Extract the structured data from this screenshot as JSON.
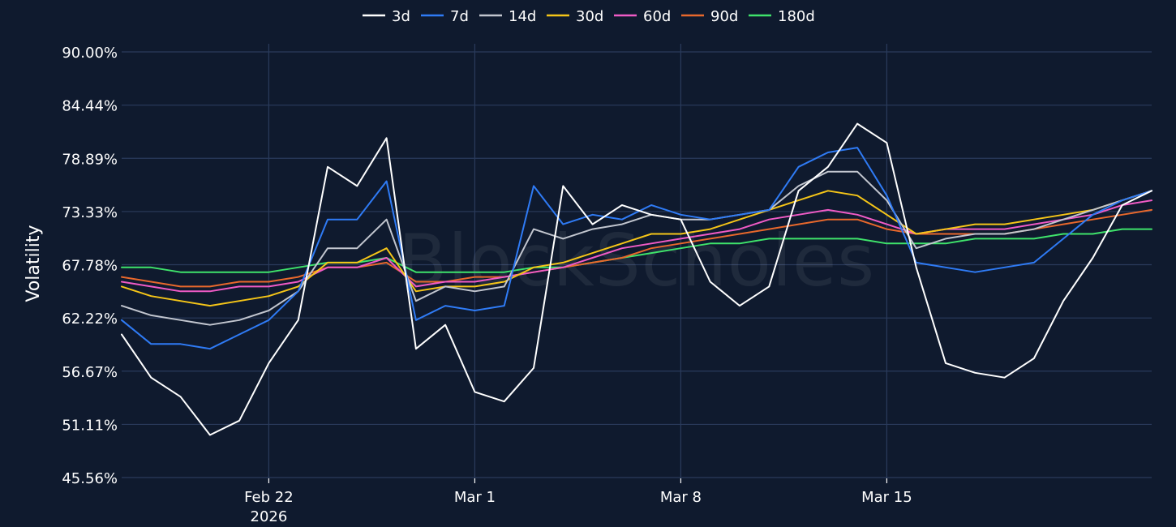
{
  "chart_data": {
    "type": "line",
    "title": "",
    "xlabel": "",
    "ylabel": "Volatility",
    "watermark": "BlockScholes",
    "x_range": [
      "2026-02-17",
      "2026-03-24"
    ],
    "ylim": [
      45.56,
      90.0
    ],
    "y_ticks": [
      {
        "value": 45.56,
        "label": "45.56%"
      },
      {
        "value": 51.11,
        "label": "51.11%"
      },
      {
        "value": 56.67,
        "label": "56.67%"
      },
      {
        "value": 62.22,
        "label": "62.22%"
      },
      {
        "value": 67.78,
        "label": "67.78%"
      },
      {
        "value": 73.33,
        "label": "73.33%"
      },
      {
        "value": 78.89,
        "label": "78.89%"
      },
      {
        "value": 84.44,
        "label": "84.44%"
      },
      {
        "value": 90.0,
        "label": "90.00%"
      }
    ],
    "x_ticks": [
      {
        "date": "2026-02-22",
        "label": "Feb 22",
        "sublabel": "2026"
      },
      {
        "date": "2026-03-01",
        "label": "Mar 1",
        "sublabel": ""
      },
      {
        "date": "2026-03-08",
        "label": "Mar 8",
        "sublabel": ""
      },
      {
        "date": "2026-03-15",
        "label": "Mar 15",
        "sublabel": ""
      }
    ],
    "grid": true,
    "legend_position": "top-center",
    "x": [
      "2026-02-17",
      "2026-02-18",
      "2026-02-19",
      "2026-02-20",
      "2026-02-21",
      "2026-02-22",
      "2026-02-23",
      "2026-02-24",
      "2026-02-25",
      "2026-02-26",
      "2026-02-27",
      "2026-02-28",
      "2026-03-01",
      "2026-03-02",
      "2026-03-03",
      "2026-03-04",
      "2026-03-05",
      "2026-03-06",
      "2026-03-07",
      "2026-03-08",
      "2026-03-09",
      "2026-03-10",
      "2026-03-11",
      "2026-03-12",
      "2026-03-13",
      "2026-03-14",
      "2026-03-15",
      "2026-03-16",
      "2026-03-17",
      "2026-03-18",
      "2026-03-19",
      "2026-03-20",
      "2026-03-21",
      "2026-03-22",
      "2026-03-23",
      "2026-03-24"
    ],
    "series": [
      {
        "name": "3d",
        "color": "#ffffff",
        "values": [
          60.5,
          56.0,
          54.0,
          50.0,
          51.5,
          57.5,
          62.0,
          78.0,
          76.0,
          81.0,
          59.0,
          61.5,
          54.5,
          53.5,
          57.0,
          76.0,
          72.0,
          74.0,
          73.0,
          72.5,
          66.0,
          63.5,
          65.5,
          75.5,
          78.0,
          82.5,
          80.5,
          67.5,
          57.5,
          56.5,
          56.0,
          58.0,
          64.0,
          68.5,
          74.0,
          75.5
        ]
      },
      {
        "name": "7d",
        "color": "#2f7bf5",
        "values": [
          62.0,
          59.5,
          59.5,
          59.0,
          60.5,
          62.0,
          65.0,
          72.5,
          72.5,
          76.5,
          62.0,
          63.5,
          63.0,
          63.5,
          76.0,
          72.0,
          73.0,
          72.5,
          74.0,
          73.0,
          72.5,
          73.0,
          73.5,
          78.0,
          79.5,
          80.0,
          75.0,
          68.0,
          67.5,
          67.0,
          67.5,
          68.0,
          70.5,
          73.0,
          74.5,
          75.5
        ]
      },
      {
        "name": "14d",
        "color": "#c2c6cf",
        "values": [
          63.5,
          62.5,
          62.0,
          61.5,
          62.0,
          63.0,
          65.0,
          69.5,
          69.5,
          72.5,
          64.0,
          65.5,
          65.0,
          65.5,
          71.5,
          70.5,
          71.5,
          72.0,
          73.0,
          72.5,
          72.5,
          73.0,
          73.5,
          76.0,
          77.5,
          77.5,
          74.5,
          69.5,
          70.5,
          71.0,
          71.0,
          71.5,
          72.5,
          73.5,
          74.5,
          75.5
        ]
      },
      {
        "name": "30d",
        "color": "#f5c518",
        "values": [
          65.5,
          64.5,
          64.0,
          63.5,
          64.0,
          64.5,
          65.5,
          68.0,
          68.0,
          69.5,
          65.0,
          65.5,
          65.5,
          66.0,
          67.5,
          68.0,
          69.0,
          70.0,
          71.0,
          71.0,
          71.5,
          72.5,
          73.5,
          74.5,
          75.5,
          75.0,
          73.0,
          71.0,
          71.5,
          72.0,
          72.0,
          72.5,
          73.0,
          73.5,
          74.5,
          75.5
        ]
      },
      {
        "name": "60d",
        "color": "#f05bc6",
        "values": [
          66.0,
          65.5,
          65.0,
          65.0,
          65.5,
          65.5,
          66.0,
          67.5,
          67.5,
          68.5,
          65.5,
          66.0,
          66.0,
          66.5,
          67.0,
          67.5,
          68.5,
          69.5,
          70.0,
          70.5,
          71.0,
          71.5,
          72.5,
          73.0,
          73.5,
          73.0,
          72.0,
          71.0,
          71.5,
          71.5,
          71.5,
          72.0,
          72.5,
          73.0,
          74.0,
          74.5
        ]
      },
      {
        "name": "90d",
        "color": "#e8682c",
        "values": [
          66.5,
          66.0,
          65.5,
          65.5,
          66.0,
          66.0,
          66.5,
          67.5,
          67.5,
          68.0,
          66.0,
          66.0,
          66.5,
          66.5,
          67.0,
          67.5,
          68.0,
          68.5,
          69.5,
          70.0,
          70.5,
          71.0,
          71.5,
          72.0,
          72.5,
          72.5,
          71.5,
          71.0,
          71.0,
          71.0,
          71.0,
          71.5,
          72.0,
          72.5,
          73.0,
          73.5
        ]
      },
      {
        "name": "180d",
        "color": "#3fe36b",
        "values": [
          67.5,
          67.5,
          67.0,
          67.0,
          67.0,
          67.0,
          67.5,
          68.0,
          68.0,
          68.5,
          67.0,
          67.0,
          67.0,
          67.0,
          67.5,
          67.5,
          68.0,
          68.5,
          69.0,
          69.5,
          70.0,
          70.0,
          70.5,
          70.5,
          70.5,
          70.5,
          70.0,
          70.0,
          70.0,
          70.5,
          70.5,
          70.5,
          71.0,
          71.0,
          71.5,
          71.5
        ]
      }
    ]
  }
}
